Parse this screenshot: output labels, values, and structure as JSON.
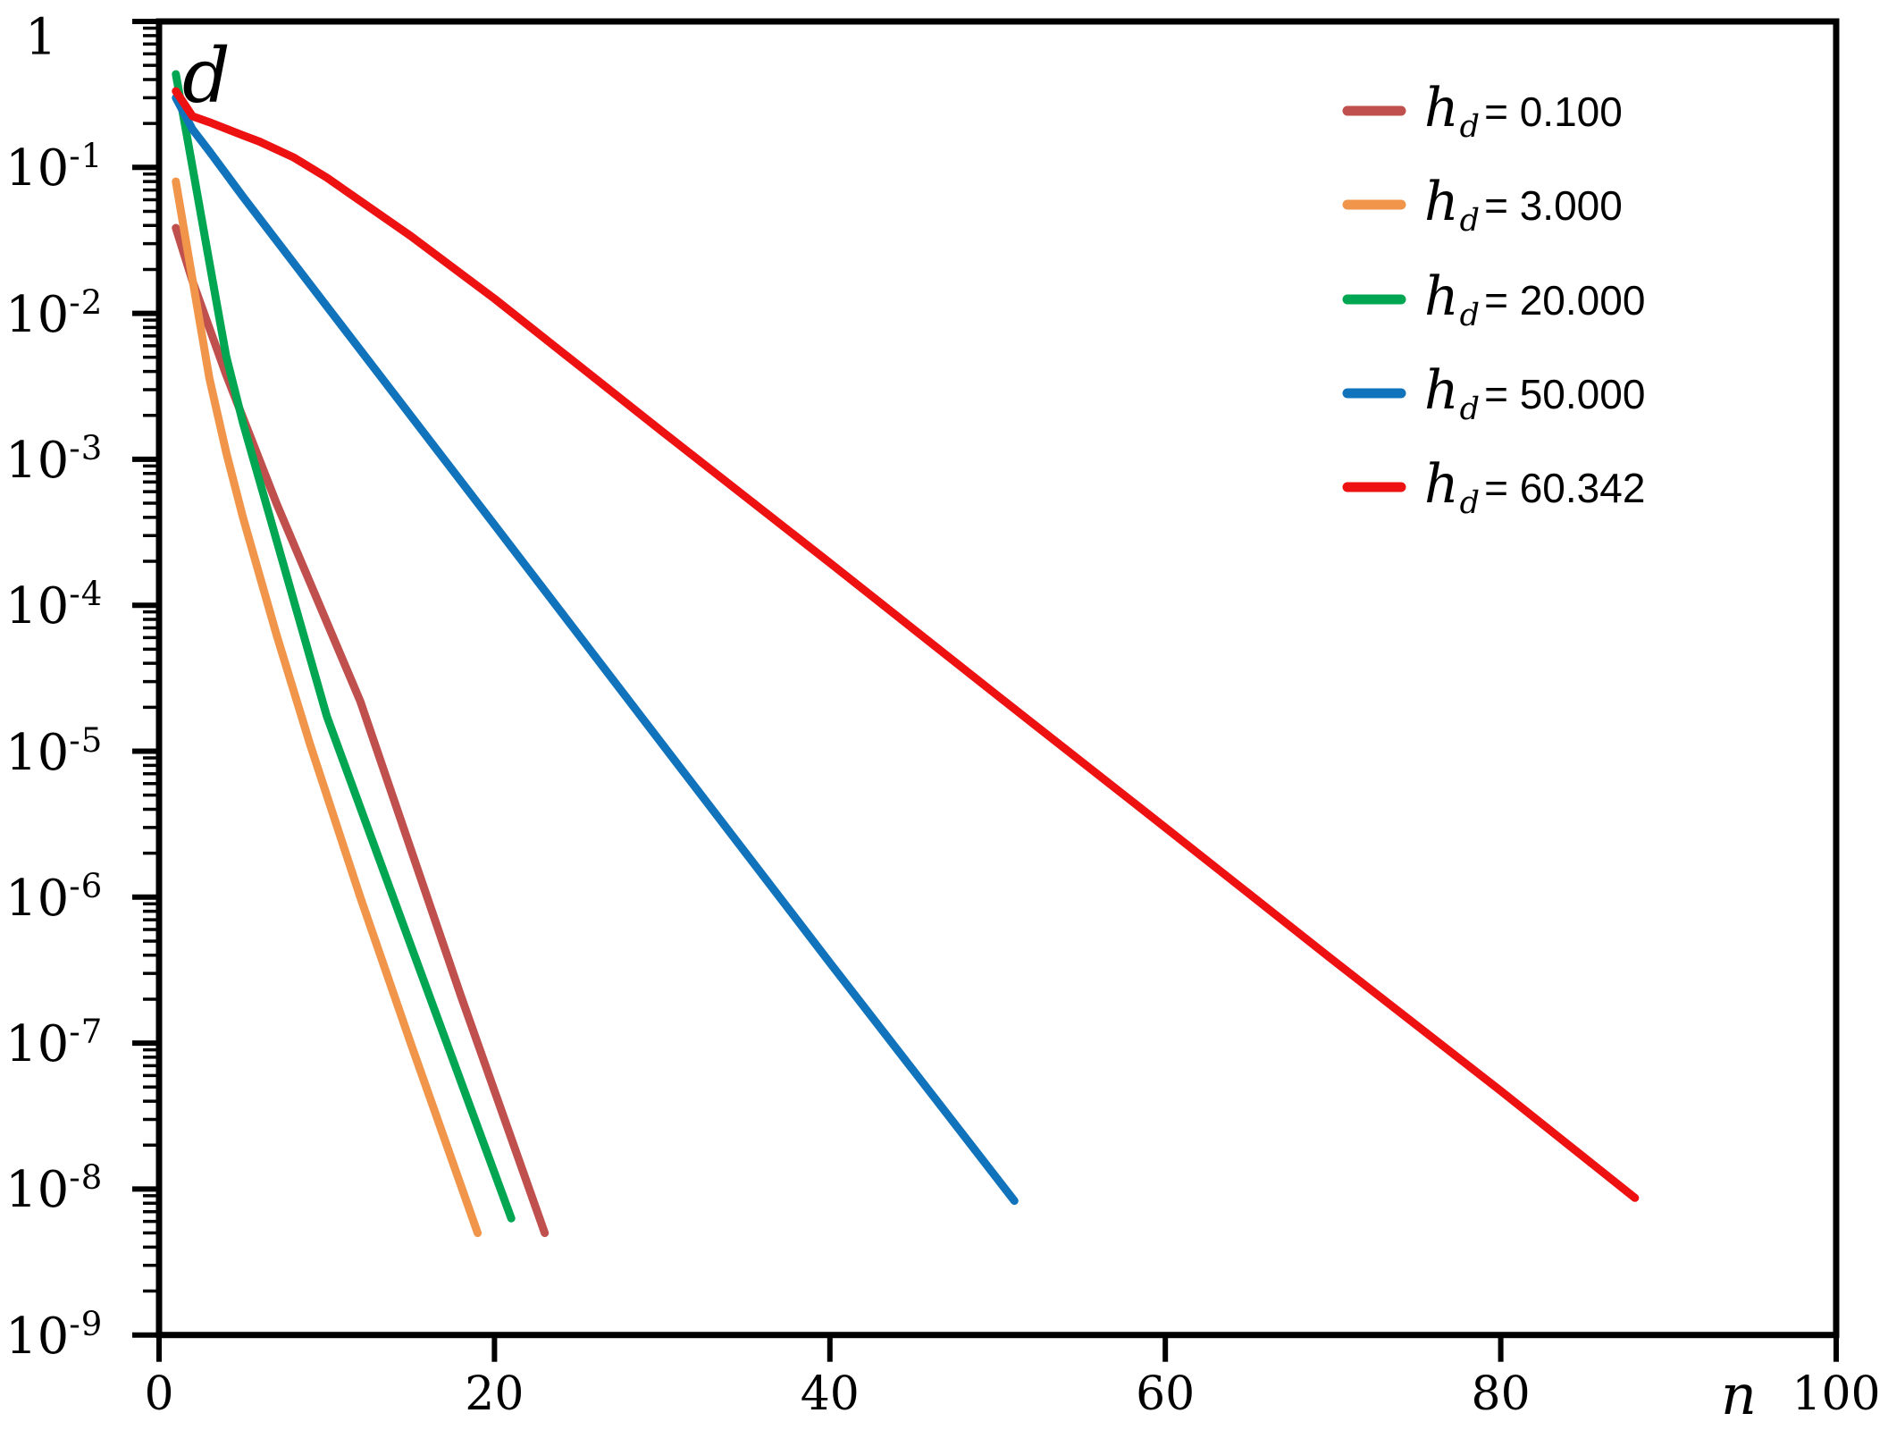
{
  "figure": {
    "background": "#ffffff"
  },
  "chart_data": {
    "type": "line",
    "title": "",
    "xlabel": "n",
    "ylabel": "",
    "annotations": {
      "d": "d"
    },
    "grid": false,
    "legend_position": "top-right-inside",
    "x_axis": {
      "min": 0,
      "max": 100,
      "ticks": [
        0,
        20,
        40,
        60,
        80,
        100
      ]
    },
    "y_axis": {
      "scale": "log",
      "max_exp": 0,
      "min_exp": -9,
      "tick_labels": [
        {
          "base": "1",
          "exp": ""
        },
        {
          "base": "10",
          "exp": "-1"
        },
        {
          "base": "10",
          "exp": "-2"
        },
        {
          "base": "10",
          "exp": "-3"
        },
        {
          "base": "10",
          "exp": "-4"
        },
        {
          "base": "10",
          "exp": "-5"
        },
        {
          "base": "10",
          "exp": "-6"
        },
        {
          "base": "10",
          "exp": "-7"
        },
        {
          "base": "10",
          "exp": "-8"
        },
        {
          "base": "10",
          "exp": "-9"
        }
      ]
    },
    "legend": [
      {
        "var": "h",
        "sub": "d",
        "text": "= 0.100",
        "color": "#C0504D"
      },
      {
        "var": "h",
        "sub": "d",
        "text": "= 3.000",
        "color": "#F0954A"
      },
      {
        "var": "h",
        "sub": "d",
        "text": "= 20.000",
        "color": "#00A651"
      },
      {
        "var": "h",
        "sub": "d",
        "text": "= 50.000",
        "color": "#1173BC"
      },
      {
        "var": "h",
        "sub": "d",
        "text": "= 60.342",
        "color": "#EE1111"
      }
    ],
    "series": [
      {
        "name": "hd-0.100",
        "hd_value": 0.1,
        "color": "#C0504D",
        "points": [
          [
            1,
            0.0385
          ],
          [
            2,
            0.0166
          ],
          [
            4,
            0.0038
          ],
          [
            7,
            0.0005
          ],
          [
            12,
            2.2e-05
          ],
          [
            18,
            2.1e-07
          ],
          [
            23,
            5e-09
          ]
        ]
      },
      {
        "name": "hd-3.000",
        "hd_value": 3.0,
        "color": "#F0954A",
        "points": [
          [
            1,
            0.08
          ],
          [
            2,
            0.017
          ],
          [
            3,
            0.0036
          ],
          [
            4,
            0.00112
          ],
          [
            5,
            0.0004
          ],
          [
            7,
            6.3e-05
          ],
          [
            9,
            1.12e-05
          ],
          [
            12,
            1e-06
          ],
          [
            15,
            1e-07
          ],
          [
            19,
            5e-09
          ]
        ]
      },
      {
        "name": "hd-20.000",
        "hd_value": 20.0,
        "color": "#00A651",
        "points": [
          [
            1,
            0.435
          ],
          [
            2,
            0.1
          ],
          [
            3,
            0.0224
          ],
          [
            4,
            0.0051
          ],
          [
            5,
            0.00178
          ],
          [
            7,
            0.00028
          ],
          [
            10,
            1.74e-05
          ],
          [
            15,
            4.7e-07
          ],
          [
            21,
            6.3e-09
          ]
        ]
      },
      {
        "name": "hd-50.000",
        "hd_value": 50.0,
        "color": "#1173BC",
        "points": [
          [
            1,
            0.3
          ],
          [
            2,
            0.182
          ],
          [
            3,
            0.129
          ],
          [
            5,
            0.063
          ],
          [
            10,
            0.0112
          ],
          [
            20,
            0.000355
          ],
          [
            30,
            1.12e-05
          ],
          [
            40,
            3.55e-07
          ],
          [
            51,
            8.3e-09
          ]
        ]
      },
      {
        "name": "hd-60.342",
        "hd_value": 60.342,
        "color": "#EE1111",
        "points": [
          [
            1,
            0.333
          ],
          [
            2,
            0.224
          ],
          [
            3,
            0.204
          ],
          [
            4,
            0.184
          ],
          [
            5,
            0.166
          ],
          [
            6,
            0.15
          ],
          [
            8,
            0.1175
          ],
          [
            10,
            0.0851
          ],
          [
            15,
            0.0339
          ],
          [
            20,
            0.0126
          ],
          [
            30,
            0.00155
          ],
          [
            40,
            0.000195
          ],
          [
            50,
            2.4e-05
          ],
          [
            60,
            3e-06
          ],
          [
            70,
            3.7e-07
          ],
          [
            80,
            4.7e-08
          ],
          [
            88,
            8.7e-09
          ]
        ]
      }
    ]
  }
}
